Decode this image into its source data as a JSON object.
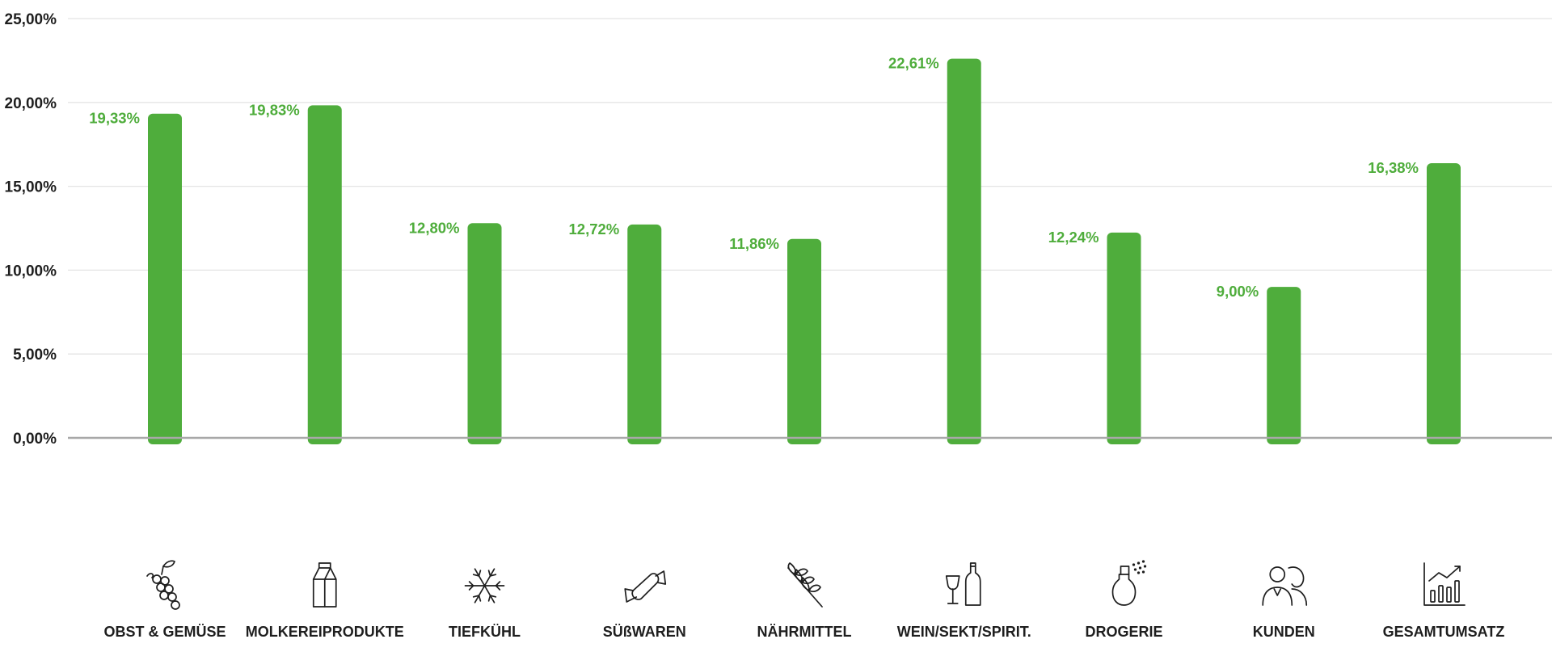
{
  "chart_data": {
    "type": "bar",
    "categories": [
      "OBST & GEMÜSE",
      "MOLKEREIPRODUKTE",
      "TIEFKÜHL",
      "SÜßWAREN",
      "NÄHRMITTEL",
      "WEIN/SEKT/SPIRIT.",
      "DROGERIE",
      "KUNDEN",
      "GESAMTUMSATZ"
    ],
    "values": [
      19.33,
      19.83,
      12.8,
      12.72,
      11.86,
      22.61,
      12.24,
      9.0,
      16.38
    ],
    "value_labels": [
      "19,33%",
      "19,83%",
      "12,80%",
      "12,72%",
      "11,86%",
      "22,61%",
      "12,24%",
      "9,00%",
      "16,38%"
    ],
    "icons": [
      "grapes-icon",
      "milk-carton-icon",
      "snowflake-icon",
      "candy-icon",
      "wheat-icon",
      "wine-bottle-glass-icon",
      "perfume-spray-icon",
      "customers-icon",
      "growth-chart-icon"
    ],
    "ylim": [
      0,
      25
    ],
    "y_ticks": [
      0,
      5,
      10,
      15,
      20,
      25
    ],
    "y_tick_labels": [
      "0,00%",
      "5,00%",
      "10,00%",
      "15,00%",
      "20,00%",
      "25,00%"
    ],
    "grid": true,
    "legend": "none",
    "bar_color": "#4fad3c",
    "label_color": "#4fad3c",
    "text_color": "#1e1e1e",
    "grid_color": "#e4e4e4",
    "baseline_color": "#a8a8a8"
  }
}
